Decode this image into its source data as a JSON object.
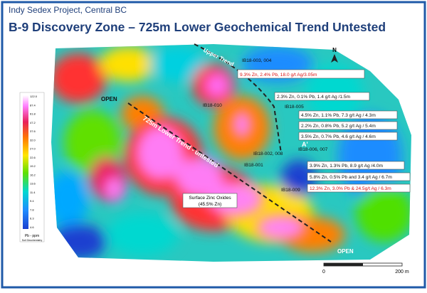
{
  "header": {
    "project": "Indy Sedex Project, Central BC",
    "title": "B-9 Discovery Zone – 725m Lower Geochemical Trend Untested"
  },
  "labels": {
    "open_left": "OPEN",
    "open_right": "OPEN",
    "upper_trend": "Upper Trend",
    "lower_trend": "725m Lower Trend - untested",
    "section": "A'"
  },
  "drillholes": [
    "IB18-003, 004",
    "IB18-010",
    "IB18-005",
    "IB18-006, 007",
    "IB18-002, 008",
    "IB18-001",
    "IB18-009"
  ],
  "intercepts": [
    "9.3% Zn, 2.4% Pb, 18.0 g/t Ag/3.05m",
    "2.3% Zn, 0.1% Pb, 1.4 g/t Ag /1.5m",
    "4.5% Zn, 1.1% Pb, 7.3 g/t Ag / 4.3m",
    "2.2% Zn, 0.8% Pb, 5.2 g/t Ag / 5.4m",
    "3.5% Zn, 0.7% Pb, 4.6 g/t Ag / 4.6m",
    "3.9% Zn, 1.3% Pb, 8.9 g/t Ag /4.0m",
    "5.8% Zn, 0.5% Pb and 3.4 g/t Ag / 6.7m",
    "12.3% Zn, 3.0% Pb & 24.5g/t Ag / 6.3m"
  ],
  "oxides": {
    "line1": "Surface Zinc Oxides",
    "line2": "(45.5% Zn)"
  },
  "legend": {
    "title": "Pb - ppm",
    "subtitle": "Soil Geochemistry",
    "ticks": [
      "122.0",
      "87.4",
      "61.8",
      "47.2",
      "37.6",
      "32.0",
      "27.0",
      "22.6",
      "19.2",
      "16.2",
      "13.6",
      "11.4",
      "9.4",
      "7.8",
      "6.3",
      "4.6"
    ]
  },
  "scale": {
    "start": "0",
    "end": "200 m"
  },
  "north": "N"
}
